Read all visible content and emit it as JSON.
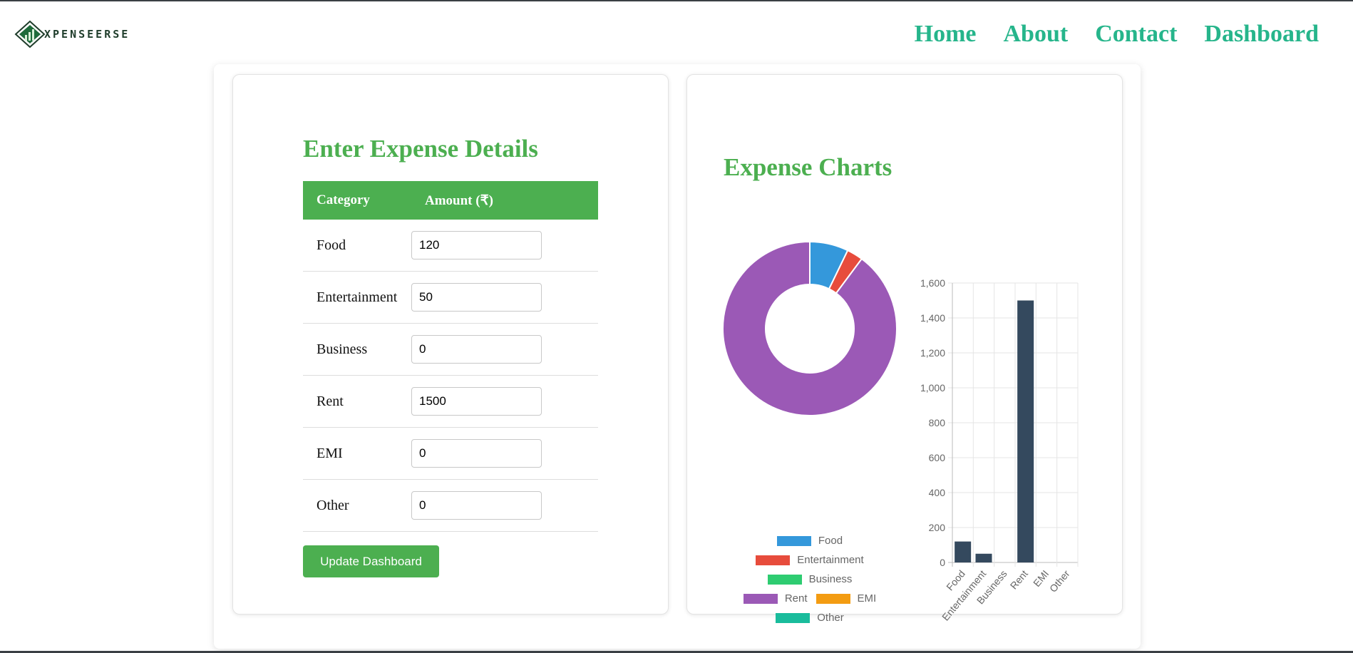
{
  "brand": {
    "name": "XPENSEERSE"
  },
  "nav": {
    "home": "Home",
    "about": "About",
    "contact": "Contact",
    "dashboard": "Dashboard"
  },
  "form": {
    "title": "Enter Expense Details",
    "headers": {
      "category": "Category",
      "amount": "Amount (₹)"
    },
    "rows": [
      {
        "category": "Food",
        "value": "120"
      },
      {
        "category": "Entertainment",
        "value": "50"
      },
      {
        "category": "Business",
        "value": "0"
      },
      {
        "category": "Rent",
        "value": "1500"
      },
      {
        "category": "EMI",
        "value": "0"
      },
      {
        "category": "Other",
        "value": "0"
      }
    ],
    "button": "Update Dashboard"
  },
  "charts": {
    "title": "Expense Charts"
  },
  "colors": {
    "accent": "#4caf50",
    "nav": "#26b58b",
    "bar": "#34495e",
    "food": "#3498db",
    "entertainment": "#e74c3c",
    "business": "#2ecc71",
    "rent": "#9b59b6",
    "emi": "#f39c12",
    "other": "#1abc9c"
  },
  "chart_data": [
    {
      "type": "pie",
      "categories": [
        "Food",
        "Entertainment",
        "Business",
        "Rent",
        "EMI",
        "Other"
      ],
      "values": [
        120,
        50,
        0,
        1500,
        0,
        0
      ],
      "colors": [
        "#3498db",
        "#e74c3c",
        "#2ecc71",
        "#9b59b6",
        "#f39c12",
        "#1abc9c"
      ],
      "legend": "bottom"
    },
    {
      "type": "bar",
      "categories": [
        "Food",
        "Entertainment",
        "Business",
        "Rent",
        "EMI",
        "Other"
      ],
      "values": [
        120,
        50,
        0,
        1500,
        0,
        0
      ],
      "ylim": [
        0,
        1600
      ],
      "yticks": [
        "0",
        "200",
        "400",
        "600",
        "800",
        "1,000",
        "1,200",
        "1,400",
        "1,600"
      ],
      "grid": true
    }
  ]
}
